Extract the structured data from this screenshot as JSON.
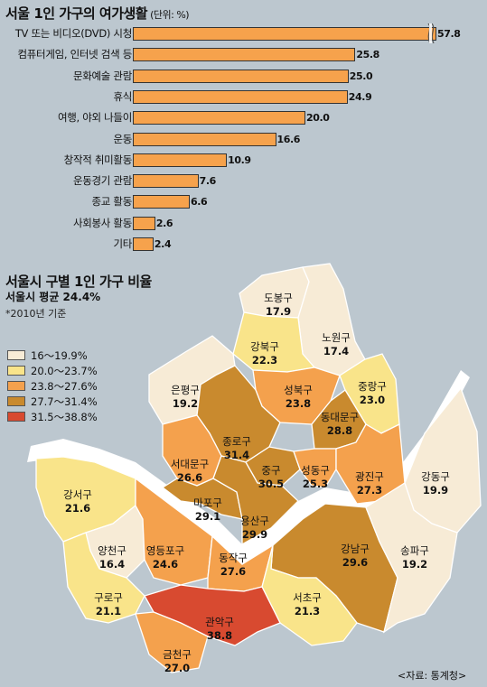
{
  "chart_data": [
    {
      "type": "bar",
      "title": "서울 1인 가구의 여가생활",
      "unit": "(단위: %)",
      "categories": [
        "TV 또는 비디오(DVD) 시청",
        "컴퓨터게임, 인터넷 검색 등",
        "문화예술 관람",
        "휴식",
        "여행, 야외 나들이",
        "운동",
        "창작적 취미활동",
        "운동경기 관람",
        "종교 활동",
        "사회봉사 활동",
        "기타"
      ],
      "values": [
        57.8,
        25.8,
        25.0,
        24.9,
        20.0,
        16.6,
        10.9,
        7.6,
        6.6,
        2.6,
        2.4
      ],
      "value_labels": [
        "57.8",
        "25.8",
        "25.0",
        "24.9",
        "20.0",
        "16.6",
        "10.9",
        "7.6",
        "6.6",
        "2.6",
        "2.4"
      ],
      "axis_break_on_first_bar": true,
      "bar_color": "#f6a24c"
    },
    {
      "type": "map",
      "title": "서울시 구별 1인 가구 비율",
      "subtitle": "서울시 평균 24.4%",
      "note": "*2010년 기준",
      "legend": [
        {
          "label": "16～19.9%",
          "color": "#f7ebd6"
        },
        {
          "label": "20.0～23.7%",
          "color": "#f9e48a"
        },
        {
          "label": "23.8～27.6%",
          "color": "#f4a14d"
        },
        {
          "label": "27.7～31.4%",
          "color": "#c98a2e"
        },
        {
          "label": "31.5～38.8%",
          "color": "#d84a30"
        }
      ],
      "districts": [
        {
          "name": "도봉구",
          "value": "17.9",
          "cls": 0
        },
        {
          "name": "노원구",
          "value": "17.4",
          "cls": 0
        },
        {
          "name": "강북구",
          "value": "22.3",
          "cls": 1
        },
        {
          "name": "은평구",
          "value": "19.2",
          "cls": 0
        },
        {
          "name": "성북구",
          "value": "23.8",
          "cls": 2
        },
        {
          "name": "중랑구",
          "value": "23.0",
          "cls": 1
        },
        {
          "name": "종로구",
          "value": "31.4",
          "cls": 3
        },
        {
          "name": "동대문구",
          "value": "28.8",
          "cls": 3
        },
        {
          "name": "서대문구",
          "value": "26.6",
          "cls": 2
        },
        {
          "name": "중구",
          "value": "30.5",
          "cls": 3
        },
        {
          "name": "성동구",
          "value": "25.3",
          "cls": 2
        },
        {
          "name": "광진구",
          "value": "27.3",
          "cls": 2
        },
        {
          "name": "마포구",
          "value": "29.1",
          "cls": 3
        },
        {
          "name": "용산구",
          "value": "29.9",
          "cls": 3
        },
        {
          "name": "강동구",
          "value": "19.9",
          "cls": 0
        },
        {
          "name": "강서구",
          "value": "21.6",
          "cls": 1
        },
        {
          "name": "양천구",
          "value": "16.4",
          "cls": 0
        },
        {
          "name": "영등포구",
          "value": "24.6",
          "cls": 2
        },
        {
          "name": "동작구",
          "value": "27.6",
          "cls": 2
        },
        {
          "name": "강남구",
          "value": "29.6",
          "cls": 3
        },
        {
          "name": "송파구",
          "value": "19.2",
          "cls": 0
        },
        {
          "name": "서초구",
          "value": "21.3",
          "cls": 1
        },
        {
          "name": "구로구",
          "value": "21.1",
          "cls": 1
        },
        {
          "name": "관악구",
          "value": "38.8",
          "cls": 4
        },
        {
          "name": "금천구",
          "value": "27.0",
          "cls": 2
        }
      ]
    }
  ],
  "source": "<자료: 통계청>"
}
